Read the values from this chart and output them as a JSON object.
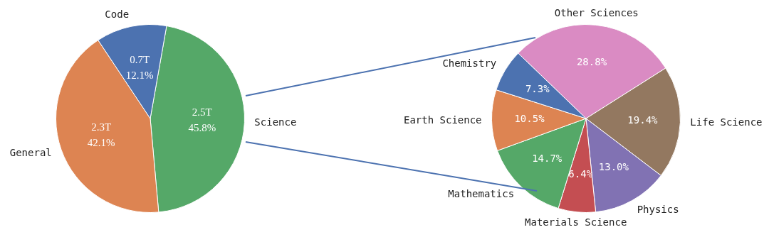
{
  "chart_data": [
    {
      "type": "pie",
      "categories": [
        "Science",
        "General",
        "Code"
      ],
      "values": [
        45.8,
        42.1,
        12.1
      ],
      "colors": [
        "#55a868",
        "#dd8452",
        "#4c72b0"
      ],
      "value_labels": [
        "2.5T\n45.8%",
        "2.3T\n42.1%",
        "0.7T\n12.1%"
      ]
    },
    {
      "type": "pie",
      "categories": [
        "Other Sciences",
        "Life Science",
        "Physics",
        "Materials Science",
        "Mathematics",
        "Earth Science",
        "Chemistry"
      ],
      "values": [
        28.8,
        19.4,
        13.0,
        6.4,
        14.7,
        10.5,
        7.3
      ],
      "colors": [
        "#da8bc3",
        "#937860",
        "#8172b3",
        "#c44e52",
        "#55a868",
        "#dd8452",
        "#4c72b0"
      ],
      "value_labels": [
        "28.8%",
        "19.4%",
        "13.0%",
        "6.4%",
        "14.7%",
        "10.5%",
        "7.3%"
      ]
    }
  ]
}
